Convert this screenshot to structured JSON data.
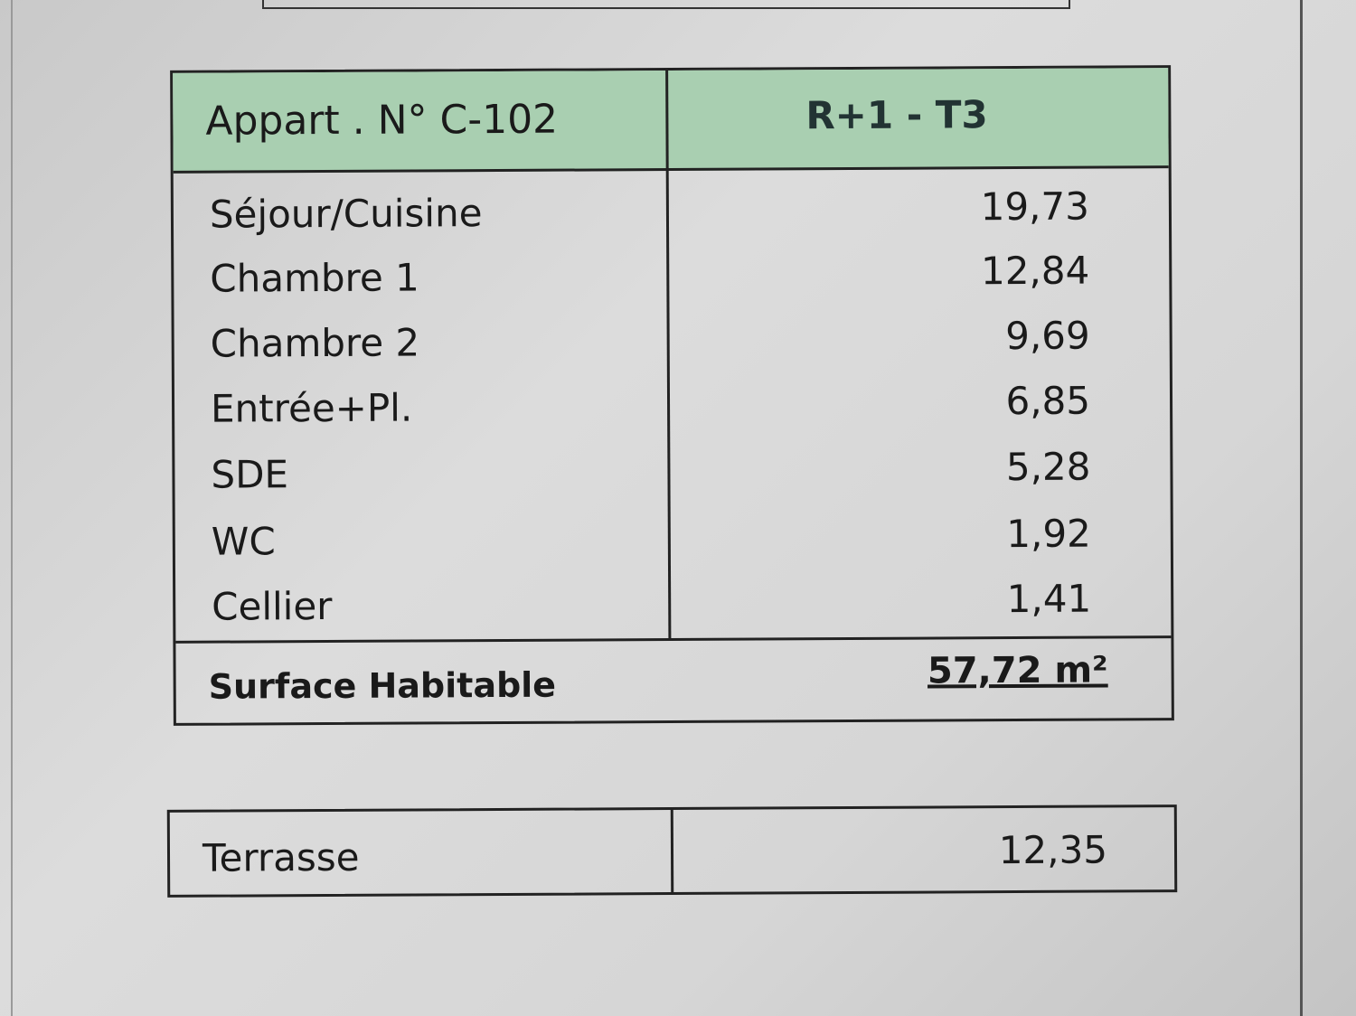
{
  "apartment": {
    "title": "Appart . N° C-102",
    "level_type": "R+1  - T3",
    "rooms": [
      {
        "name": "Séjour/Cuisine",
        "area": "19,73"
      },
      {
        "name": "Chambre 1",
        "area": "12,84"
      },
      {
        "name": "Chambre 2",
        "area": "9,69"
      },
      {
        "name": "Entrée+Pl.",
        "area": "6,85"
      },
      {
        "name": "SDE",
        "area": "5,28"
      },
      {
        "name": "WC",
        "area": "1,92"
      },
      {
        "name": "Cellier",
        "area": "1,41"
      }
    ],
    "total_label": "Surface Habitable",
    "total_value": "57,72 m²",
    "header_color": "#a9cfb1"
  },
  "terrace": {
    "name": "Terrasse",
    "area": "12,35"
  }
}
